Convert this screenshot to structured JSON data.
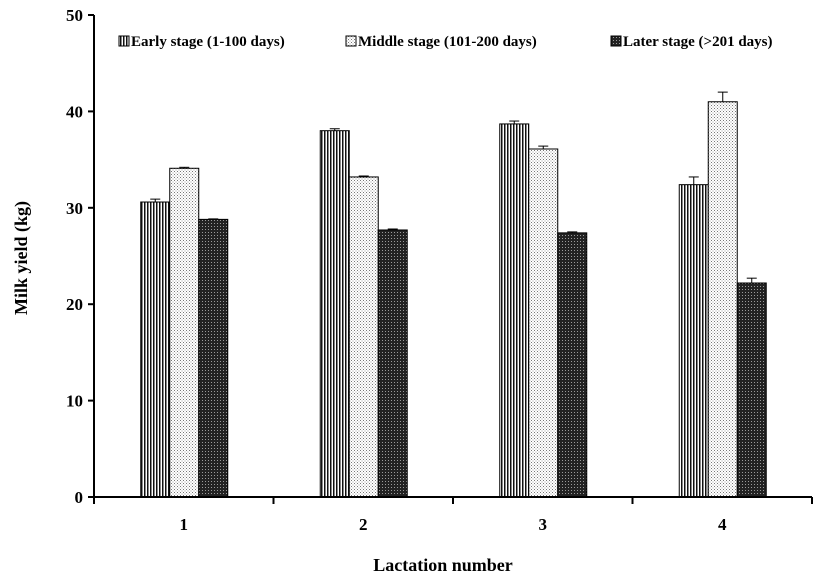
{
  "chart_data": {
    "type": "bar",
    "title": "",
    "xlabel": "Lactation number",
    "ylabel": "Milk yield (kg)",
    "ylim": [
      0,
      50
    ],
    "yticks": [
      0,
      10,
      20,
      30,
      40,
      50
    ],
    "grid": false,
    "legend_position": "top",
    "categories": [
      "1",
      "2",
      "3",
      "4"
    ],
    "series": [
      {
        "name": "Early stage (1-100 days)",
        "pattern": "vertical-stripes",
        "values": [
          30.6,
          38.0,
          38.7,
          32.4
        ],
        "errors": [
          0.3,
          0.2,
          0.3,
          0.8
        ]
      },
      {
        "name": "Middle stage (101-200 days)",
        "pattern": "dots",
        "values": [
          34.1,
          33.2,
          36.1,
          41.0
        ],
        "errors": [
          0.1,
          0.1,
          0.3,
          1.0
        ]
      },
      {
        "name": "Later stage (>201 days)",
        "pattern": "crosshatch",
        "values": [
          28.8,
          27.7,
          27.4,
          22.2
        ],
        "errors": [
          0.05,
          0.1,
          0.1,
          0.5
        ]
      }
    ]
  }
}
